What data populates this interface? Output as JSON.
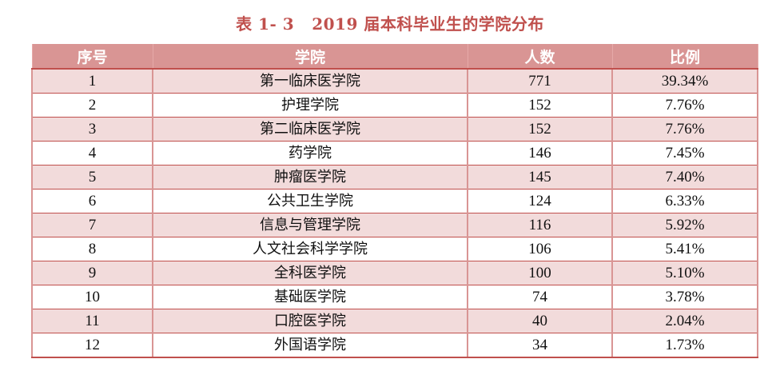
{
  "caption": {
    "number": "表 1- 3",
    "title": "2019 届本科毕业生的学院分布"
  },
  "colors": {
    "caption": "#C0504D",
    "header_bg": "#D99594",
    "stripe_bg": "#F2DBDB",
    "border": "#C0504D"
  },
  "table": {
    "headers": [
      "序号",
      "学院",
      "人数",
      "比例"
    ],
    "rows": [
      {
        "index": "1",
        "college": "第一临床医学院",
        "count": "771",
        "ratio": "39.34%"
      },
      {
        "index": "2",
        "college": "护理学院",
        "count": "152",
        "ratio": "7.76%"
      },
      {
        "index": "3",
        "college": "第二临床医学院",
        "count": "152",
        "ratio": "7.76%"
      },
      {
        "index": "4",
        "college": "药学院",
        "count": "146",
        "ratio": "7.45%"
      },
      {
        "index": "5",
        "college": "肿瘤医学院",
        "count": "145",
        "ratio": "7.40%"
      },
      {
        "index": "6",
        "college": "公共卫生学院",
        "count": "124",
        "ratio": "6.33%"
      },
      {
        "index": "7",
        "college": "信息与管理学院",
        "count": "116",
        "ratio": "5.92%"
      },
      {
        "index": "8",
        "college": "人文社会科学学院",
        "count": "106",
        "ratio": "5.41%"
      },
      {
        "index": "9",
        "college": "全科医学院",
        "count": "100",
        "ratio": "5.10%"
      },
      {
        "index": "10",
        "college": "基础医学院",
        "count": "74",
        "ratio": "3.78%"
      },
      {
        "index": "11",
        "college": "口腔医学院",
        "count": "40",
        "ratio": "2.04%"
      },
      {
        "index": "12",
        "college": "外国语学院",
        "count": "34",
        "ratio": "1.73%"
      }
    ]
  }
}
